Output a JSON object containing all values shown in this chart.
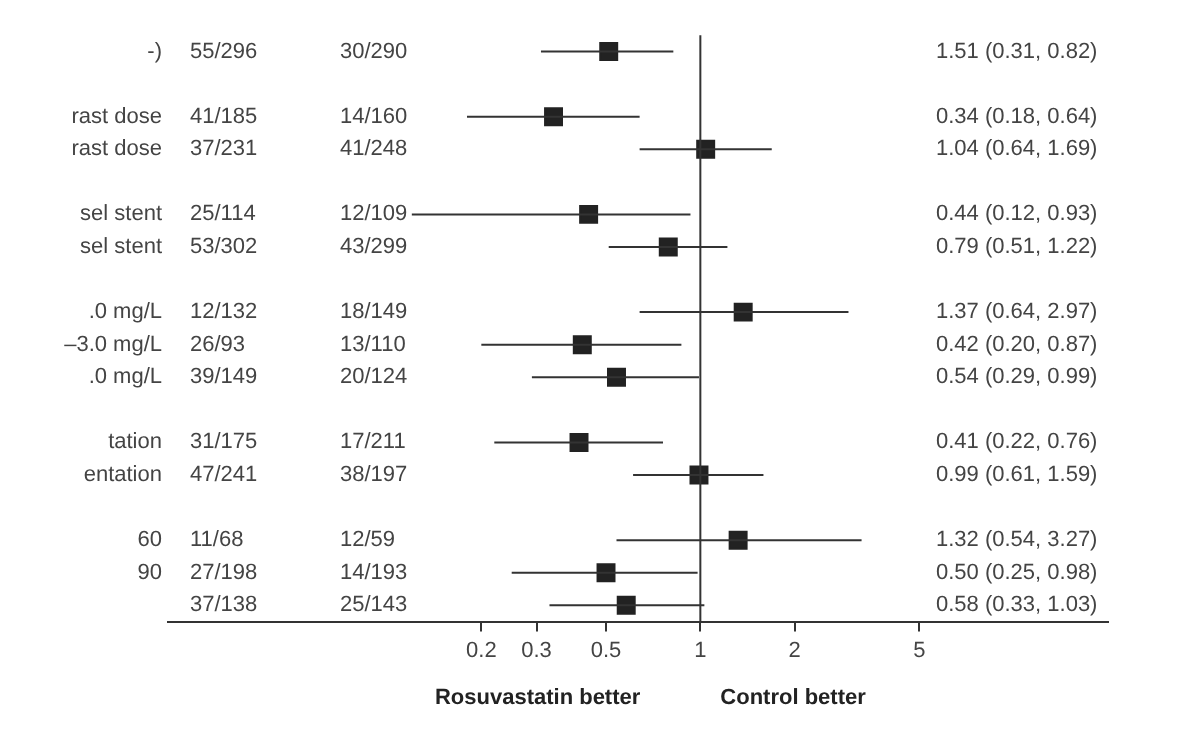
{
  "chart_data": {
    "type": "scatter",
    "orientation": "horizontal",
    "log": "x",
    "marker": "square",
    "color": "#222222",
    "categories": [
      "-)",
      null,
      "rast dose",
      "rast dose",
      null,
      "sel stent",
      "sel stent",
      null,
      ".0 mg/L",
      "–3.0 mg/L",
      ".0 mg/L",
      null,
      "tation",
      "entation",
      null,
      "60",
      "90",
      null
    ],
    "values": [
      0.51,
      null,
      0.34,
      1.04,
      null,
      0.44,
      0.79,
      null,
      1.37,
      0.42,
      0.54,
      null,
      0.41,
      0.99,
      null,
      1.32,
      0.5,
      0.58
    ],
    "errors": [
      [
        0.31,
        0.82
      ],
      null,
      [
        0.18,
        0.64
      ],
      [
        0.64,
        1.69
      ],
      null,
      [
        0.12,
        0.93
      ],
      [
        0.51,
        1.22
      ],
      null,
      [
        0.64,
        2.97
      ],
      [
        0.2,
        0.87
      ],
      [
        0.29,
        0.99
      ],
      null,
      [
        0.22,
        0.76
      ],
      [
        0.61,
        1.59
      ],
      null,
      [
        0.54,
        3.27
      ],
      [
        0.25,
        0.98
      ],
      [
        0.33,
        1.03
      ]
    ],
    "xlim": [
      0.02,
      20
    ],
    "xticks": [
      0.2,
      0.3,
      0.5,
      1,
      2,
      5
    ],
    "ref_lines": [
      {
        "axis": "x",
        "value": 1,
        "color": "#333333"
      }
    ],
    "grid": false,
    "legend": false,
    "annotations": [
      "55/296",
      "30/290",
      "1.51 (0.31, 0.82)",
      "41/185",
      "14/160",
      "0.34 (0.18, 0.64)",
      "37/231",
      "41/248",
      "1.04 (0.64, 1.69)",
      "25/114",
      "12/109",
      "0.44 (0.12, 0.93)",
      "53/302",
      "43/299",
      "0.79 (0.51, 1.22)",
      "12/132",
      "18/149",
      "1.37 (0.64, 2.97)",
      "26/93",
      "13/110",
      "0.42 (0.20, 0.87)",
      "39/149",
      "20/124",
      "0.54 (0.29, 0.99)",
      "31/175",
      "17/211",
      "0.41 (0.22, 0.76)",
      "47/241",
      "38/197",
      "0.99 (0.61, 1.59)",
      "11/68",
      "12/59",
      "1.32 (0.54, 3.27)",
      "27/198",
      "14/193",
      "0.50 (0.25, 0.98)",
      "37/138",
      "25/143",
      "0.58 (0.33, 1.03)",
      "Rosuvastatin better",
      "Control better"
    ]
  }
}
